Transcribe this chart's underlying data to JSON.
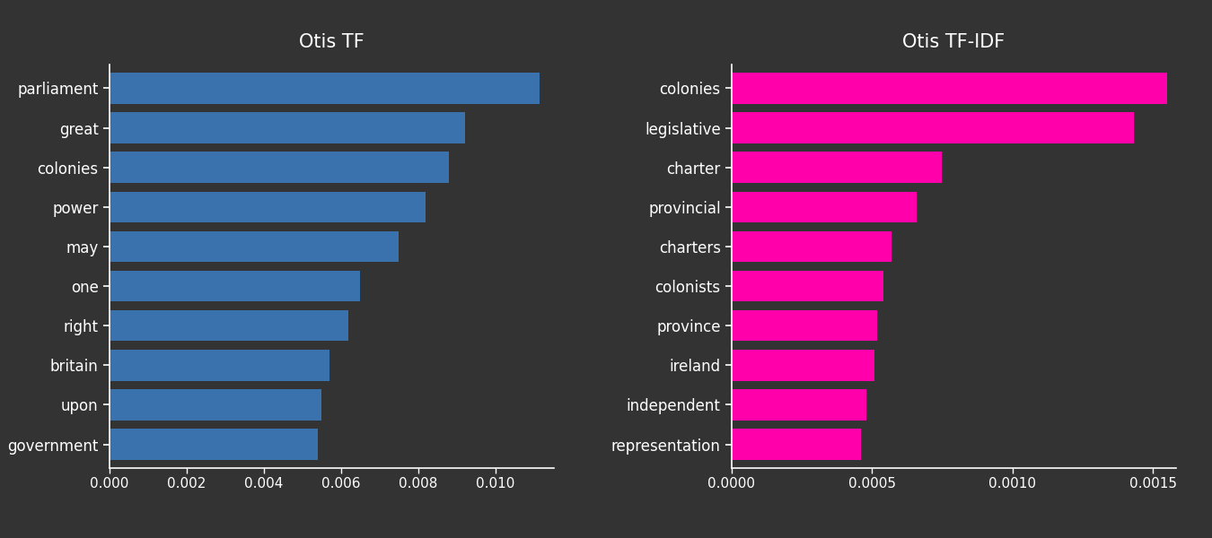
{
  "tf_labels": [
    "parliament",
    "great",
    "colonies",
    "power",
    "may",
    "one",
    "right",
    "britain",
    "upon",
    "government"
  ],
  "tf_values": [
    0.01115,
    0.0092,
    0.0088,
    0.0082,
    0.0075,
    0.0065,
    0.0062,
    0.0057,
    0.0055,
    0.0054
  ],
  "tfidf_labels": [
    "colonies",
    "legislative",
    "charter",
    "provincial",
    "charters",
    "colonists",
    "province",
    "ireland",
    "independent",
    "representation"
  ],
  "tfidf_values": [
    0.00155,
    0.00143,
    0.00075,
    0.00066,
    0.00057,
    0.00054,
    0.00052,
    0.00051,
    0.00048,
    0.00046
  ],
  "tf_color": "#3a72ae",
  "tfidf_color": "#ff00aa",
  "bg_color": "#333333",
  "text_color": "white",
  "title_tf": "Otis TF",
  "title_tfidf": "Otis TF-IDF",
  "tf_xlim": [
    0,
    0.0115
  ],
  "tfidf_xlim": [
    0,
    0.00158
  ],
  "tf_xticks": [
    0.0,
    0.002,
    0.004,
    0.006,
    0.008,
    0.01
  ],
  "tfidf_xticks": [
    0.0,
    0.0005,
    0.001,
    0.0015
  ],
  "title_fontsize": 15,
  "label_fontsize": 12,
  "tick_fontsize": 11,
  "bar_height": 0.78
}
